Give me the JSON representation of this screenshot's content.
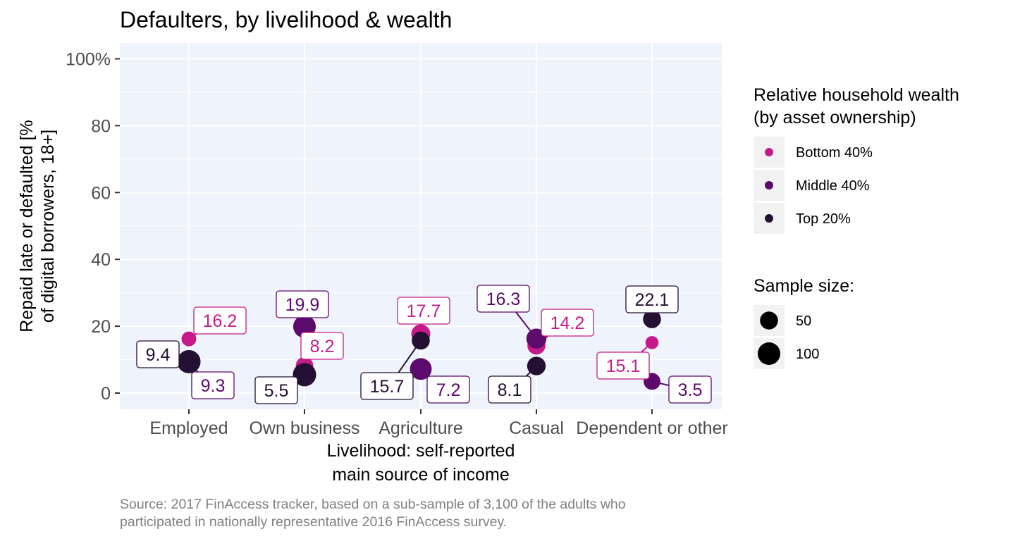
{
  "chart_data": {
    "type": "scatter",
    "title": "Defaulters, by livelihood & wealth",
    "xlabel": [
      "Livelihood: self-reported",
      "main source of income"
    ],
    "ylabel": [
      "Repaid late or defaulted [%",
      "of digital borrowers, 18+]"
    ],
    "categories": [
      "Employed",
      "Own business",
      "Agriculture",
      "Casual",
      "Dependent or other"
    ],
    "y_ticks": [
      "0",
      "20",
      "40",
      "60",
      "80",
      "100%"
    ],
    "ylim": [
      0,
      100
    ],
    "grid": true,
    "legend_position": "right",
    "colors": {
      "Bottom 40%": "#c51b8a",
      "Middle 40%": "#5c0a6b",
      "Top 20%": "#241033",
      "panel": "#eff3fb",
      "grid": "#ffffff"
    },
    "series": [
      {
        "name": "Bottom 40%",
        "values": [
          16.2,
          8.2,
          17.7,
          14.2,
          15.1
        ],
        "sample_size": [
          25,
          45,
          60,
          50,
          15
        ]
      },
      {
        "name": "Middle 40%",
        "values": [
          9.3,
          19.9,
          7.2,
          16.3,
          3.5
        ],
        "sample_size": [
          30,
          100,
          90,
          70,
          40
        ]
      },
      {
        "name": "Top 20%",
        "values": [
          9.4,
          5.5,
          15.7,
          8.1,
          22.1
        ],
        "sample_size": [
          110,
          110,
          50,
          55,
          50
        ]
      }
    ],
    "legend": {
      "color_title": [
        "Relative household wealth",
        "(by asset ownership)"
      ],
      "color_items": [
        "Bottom 40%",
        "Middle 40%",
        "Top 20%"
      ],
      "size_title": "Sample size:",
      "size_items": [
        50,
        100
      ]
    },
    "caption": [
      "Source: 2017 FinAccess tracker, based on a sub-sample of 3,100 of the adults who",
      "participated in nationally representative 2016 FinAccess survey."
    ]
  }
}
